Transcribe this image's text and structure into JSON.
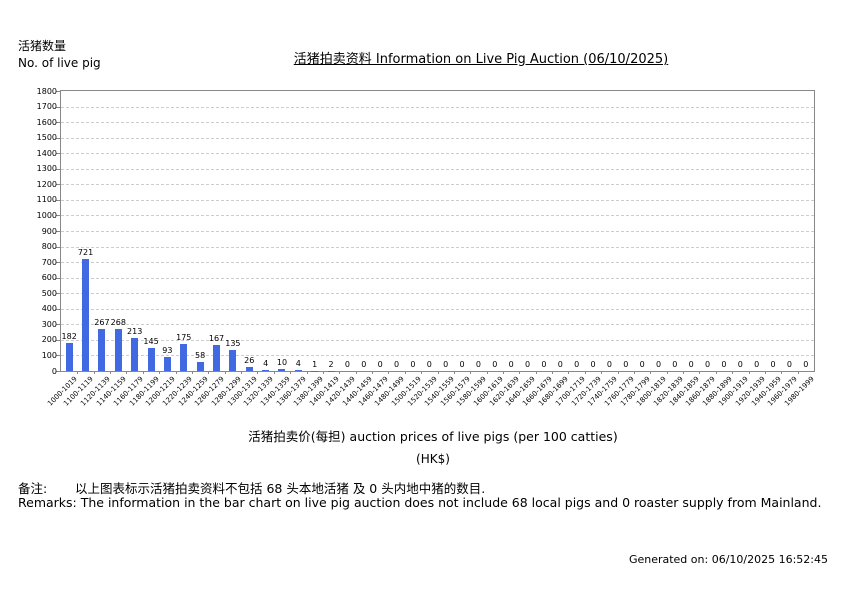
{
  "page": {
    "y_axis_title_zh": "活猪数量",
    "y_axis_title_en": "No. of live pig",
    "title": "活猪拍卖资料 Information on Live Pig Auction (06/10/2025)",
    "x_axis_title": "活猪拍卖价(每担) auction prices of live pigs (per 100 catties)",
    "x_axis_unit": "(HK$)",
    "remark_zh_label": "备注:",
    "remark_zh_text": "以上图表标示活猪拍卖资料不包括 68 头本地活猪 及 0 头内地中猪的数目.",
    "remark_en_text": "Remarks: The information in the bar chart on live pig auction does not include 68 local pigs and 0 roaster supply from Mainland.",
    "generated_on": "Generated on: 06/10/2025 16:52:45"
  },
  "chart_data": {
    "type": "bar",
    "title": "活猪拍卖资料 Information on Live Pig Auction (06/10/2025)",
    "xlabel": "活猪拍卖价(每担) auction prices of live pigs (per 100 catties) (HK$)",
    "ylabel": "活猪数量 No. of live pig",
    "categories": [
      "1000-1019",
      "1100-1119",
      "1120-1139",
      "1140-1159",
      "1160-1179",
      "1180-1199",
      "1200-1219",
      "1220-1239",
      "1240-1259",
      "1260-1279",
      "1280-1299",
      "1300-1319",
      "1320-1339",
      "1340-1359",
      "1360-1379",
      "1380-1399",
      "1400-1419",
      "1420-1439",
      "1440-1459",
      "1460-1479",
      "1480-1499",
      "1500-1519",
      "1520-1539",
      "1540-1559",
      "1560-1579",
      "1580-1599",
      "1600-1619",
      "1620-1639",
      "1640-1659",
      "1660-1679",
      "1680-1699",
      "1700-1719",
      "1720-1739",
      "1740-1759",
      "1760-1779",
      "1780-1799",
      "1800-1819",
      "1820-1839",
      "1840-1859",
      "1860-1879",
      "1880-1899",
      "1900-1919",
      "1920-1939",
      "1940-1959",
      "1960-1979",
      "1980-1999"
    ],
    "values": [
      182,
      721,
      267,
      268,
      213,
      145,
      93,
      175,
      58,
      167,
      135,
      26,
      4,
      10,
      4,
      1,
      2,
      0,
      0,
      0,
      0,
      0,
      0,
      0,
      0,
      0,
      0,
      0,
      0,
      0,
      0,
      0,
      0,
      0,
      0,
      0,
      0,
      0,
      0,
      0,
      0,
      0,
      0,
      0,
      0,
      0
    ],
    "ylim": [
      0,
      1800
    ],
    "y_tick_step": 100,
    "y_ticks": [
      0,
      100,
      200,
      300,
      400,
      500,
      600,
      700,
      800,
      900,
      1000,
      1100,
      1200,
      1300,
      1400,
      1500,
      1600,
      1700,
      1800
    ],
    "grid": true,
    "legend": "none",
    "bar_color": "#4169e1",
    "grid_color": "#cccccc",
    "axis_color": "#888888"
  }
}
